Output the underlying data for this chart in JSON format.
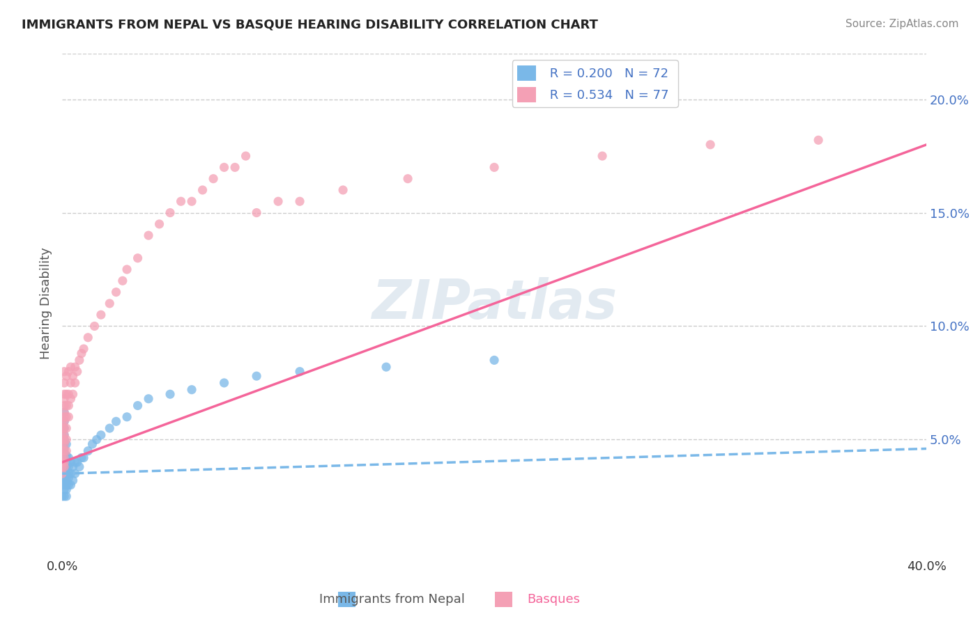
{
  "title": "IMMIGRANTS FROM NEPAL VS BASQUE HEARING DISABILITY CORRELATION CHART",
  "source": "Source: ZipAtlas.com",
  "xlabel_nepal": "Immigrants from Nepal",
  "xlabel_basque": "Basques",
  "ylabel": "Hearing Disability",
  "watermark": "ZIPatlas",
  "xlim": [
    0.0,
    0.4
  ],
  "ylim": [
    0.0,
    0.22
  ],
  "yticks_right": [
    0.05,
    0.1,
    0.15,
    0.2
  ],
  "ytick_labels_right": [
    "5.0%",
    "10.0%",
    "15.0%",
    "20.0%"
  ],
  "legend_nepal_r": "0.200",
  "legend_nepal_n": "72",
  "legend_basque_r": "0.534",
  "legend_basque_n": "77",
  "color_nepal": "#7ab8e8",
  "color_basque": "#f4a0b5",
  "color_nepal_line": "#7ab8e8",
  "color_basque_line": "#f4659a",
  "color_ytick": "#4472c4",
  "nepal_trend_x": [
    0.0,
    0.4
  ],
  "nepal_trend_y": [
    0.035,
    0.046
  ],
  "basque_trend_x": [
    0.0,
    0.4
  ],
  "basque_trend_y": [
    0.04,
    0.18
  ],
  "nepal_x": [
    0.0,
    0.0,
    0.0,
    0.0,
    0.0,
    0.0,
    0.0,
    0.0,
    0.0,
    0.0,
    0.001,
    0.001,
    0.001,
    0.001,
    0.001,
    0.001,
    0.001,
    0.001,
    0.001,
    0.001,
    0.001,
    0.001,
    0.001,
    0.001,
    0.001,
    0.001,
    0.001,
    0.001,
    0.001,
    0.001,
    0.002,
    0.002,
    0.002,
    0.002,
    0.002,
    0.002,
    0.002,
    0.002,
    0.002,
    0.003,
    0.003,
    0.003,
    0.003,
    0.003,
    0.004,
    0.004,
    0.004,
    0.005,
    0.005,
    0.006,
    0.006,
    0.007,
    0.008,
    0.009,
    0.01,
    0.012,
    0.014,
    0.016,
    0.018,
    0.022,
    0.025,
    0.03,
    0.035,
    0.04,
    0.05,
    0.06,
    0.075,
    0.09,
    0.11,
    0.15,
    0.2
  ],
  "nepal_y": [
    0.025,
    0.03,
    0.032,
    0.035,
    0.037,
    0.038,
    0.04,
    0.042,
    0.045,
    0.048,
    0.025,
    0.028,
    0.03,
    0.032,
    0.033,
    0.035,
    0.036,
    0.037,
    0.038,
    0.04,
    0.042,
    0.043,
    0.044,
    0.046,
    0.048,
    0.05,
    0.052,
    0.055,
    0.058,
    0.062,
    0.025,
    0.028,
    0.03,
    0.032,
    0.035,
    0.038,
    0.04,
    0.043,
    0.048,
    0.03,
    0.033,
    0.035,
    0.038,
    0.042,
    0.03,
    0.035,
    0.04,
    0.032,
    0.038,
    0.035,
    0.04,
    0.04,
    0.038,
    0.042,
    0.042,
    0.045,
    0.048,
    0.05,
    0.052,
    0.055,
    0.058,
    0.06,
    0.065,
    0.068,
    0.07,
    0.072,
    0.075,
    0.078,
    0.08,
    0.082,
    0.085
  ],
  "basque_x": [
    0.0,
    0.0,
    0.0,
    0.0,
    0.0,
    0.0,
    0.0,
    0.0,
    0.0,
    0.0,
    0.001,
    0.001,
    0.001,
    0.001,
    0.001,
    0.001,
    0.001,
    0.001,
    0.001,
    0.001,
    0.001,
    0.001,
    0.001,
    0.001,
    0.001,
    0.001,
    0.002,
    0.002,
    0.002,
    0.002,
    0.002,
    0.002,
    0.002,
    0.003,
    0.003,
    0.003,
    0.003,
    0.004,
    0.004,
    0.004,
    0.005,
    0.005,
    0.006,
    0.006,
    0.007,
    0.008,
    0.009,
    0.01,
    0.012,
    0.015,
    0.018,
    0.022,
    0.025,
    0.028,
    0.03,
    0.035,
    0.04,
    0.045,
    0.05,
    0.055,
    0.06,
    0.065,
    0.07,
    0.075,
    0.08,
    0.085,
    0.09,
    0.1,
    0.11,
    0.13,
    0.16,
    0.2,
    0.25,
    0.3,
    0.35
  ],
  "basque_y": [
    0.035,
    0.038,
    0.04,
    0.042,
    0.045,
    0.048,
    0.05,
    0.052,
    0.055,
    0.058,
    0.038,
    0.04,
    0.042,
    0.045,
    0.048,
    0.05,
    0.052,
    0.055,
    0.058,
    0.06,
    0.062,
    0.065,
    0.068,
    0.07,
    0.075,
    0.08,
    0.045,
    0.05,
    0.055,
    0.06,
    0.065,
    0.07,
    0.078,
    0.06,
    0.065,
    0.07,
    0.08,
    0.068,
    0.075,
    0.082,
    0.07,
    0.078,
    0.075,
    0.082,
    0.08,
    0.085,
    0.088,
    0.09,
    0.095,
    0.1,
    0.105,
    0.11,
    0.115,
    0.12,
    0.125,
    0.13,
    0.14,
    0.145,
    0.15,
    0.155,
    0.155,
    0.16,
    0.165,
    0.17,
    0.17,
    0.175,
    0.15,
    0.155,
    0.155,
    0.16,
    0.165,
    0.17,
    0.175,
    0.18,
    0.182
  ]
}
